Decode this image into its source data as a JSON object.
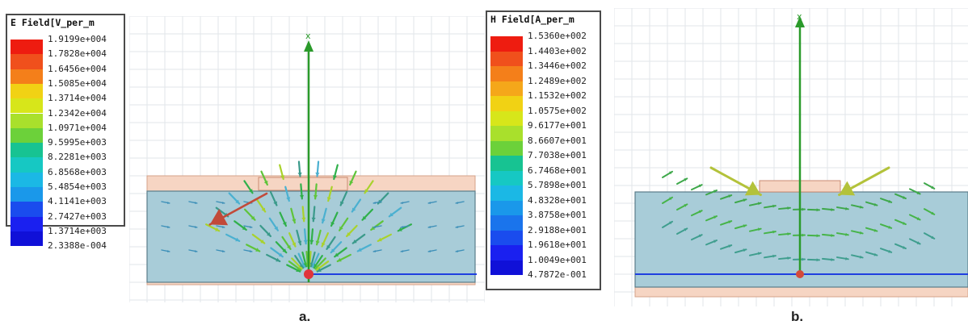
{
  "panels": [
    {
      "legend_title": "E Field[V_per_m",
      "values": [
        "1.9199e+004",
        "1.7828e+004",
        "1.6456e+004",
        "1.5085e+004",
        "1.3714e+004",
        "1.2342e+004",
        "1.0971e+004",
        "9.5995e+003",
        "8.2281e+003",
        "6.8568e+003",
        "5.4854e+003",
        "4.1141e+003",
        "2.7427e+003",
        "1.3714e+003",
        "2.3388e-004"
      ],
      "axis_label": "x",
      "caption": "a."
    },
    {
      "legend_title": "H Field[A_per_m",
      "values": [
        "1.5360e+002",
        "1.4403e+002",
        "1.3446e+002",
        "1.2489e+002",
        "1.1532e+002",
        "1.0575e+002",
        "9.6177e+001",
        "8.6607e+001",
        "7.7038e+001",
        "6.7468e+001",
        "5.7898e+001",
        "4.8328e+001",
        "3.8758e+001",
        "2.9188e+001",
        "1.9618e+001",
        "1.0049e+001",
        "4.7872e-001"
      ],
      "axis_label": "x",
      "caption": "b."
    }
  ],
  "colors": {
    "scale": [
      "#ee1c10",
      "#f0501c",
      "#f47f1a",
      "#f5a71a",
      "#f1d214",
      "#d7e61a",
      "#a9e02c",
      "#6cd13a",
      "#2fc454",
      "#17c392",
      "#16c8c3",
      "#1bb8e5",
      "#1a98ea",
      "#1a74ec",
      "#1a4cee",
      "#1a20f0",
      "#1010d8"
    ],
    "arrow": "#3a9a3a",
    "substrate": "#a8ccd8",
    "patch": "#f6d5c3",
    "axis": "#2a9a2a",
    "ground": "#1f3fe0"
  }
}
